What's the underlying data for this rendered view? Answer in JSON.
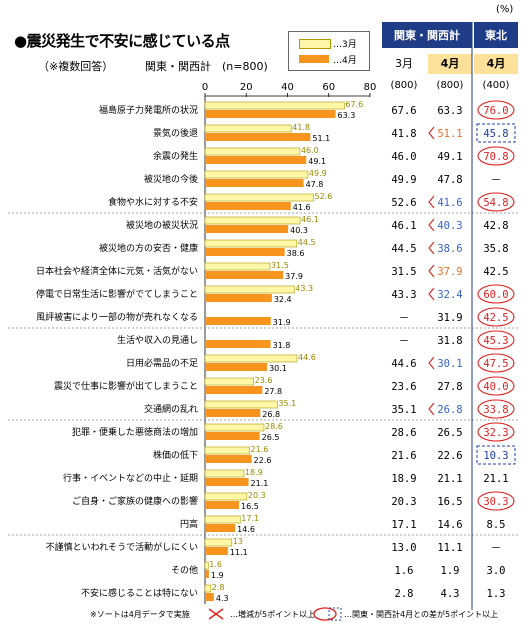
{
  "title": "●震災発生で不安に感じている点",
  "note": "（※複数回答）",
  "subtitle": "関東・関西計　(n=800)",
  "unit": "(%)",
  "legend": [
    {
      "label": "…3月",
      "color": "#fff7a8"
    },
    {
      "label": "…4月",
      "color": "#f7941d"
    }
  ],
  "headers": {
    "kanto_kansai": "関東・関西計",
    "tohoku": "東北",
    "march": "3月",
    "april": "4月",
    "april_tohoku": "4月",
    "n_march": "(800)",
    "n_april": "(800)",
    "n_tohoku": "(400)"
  },
  "chart_data": {
    "type": "bar",
    "orientation": "horizontal",
    "xlim": [
      0,
      80
    ],
    "xticks": [
      "0",
      "20",
      "40",
      "60",
      "80"
    ],
    "categories": [
      "福島原子力発電所の状況",
      "景気の後退",
      "余震の発生",
      "被災地の今後",
      "食物や水に対する不安",
      "被災地の被災状況",
      "被災地の方の安否・健康",
      "日本社会や経済全体に元気・活気がない",
      "停電で日常生活に影響がでてしまうこと",
      "風評被害により一部の物が売れなくなる",
      "生活や収入の見通し",
      "日用必需品の不足",
      "震災で仕事に影響が出てしまうこと",
      "交通網の乱れ",
      "犯罪・便乗した悪徳商法の増加",
      "株価の低下",
      "行事・イベントなどの中止・延期",
      "ご自身・ご家族の健康への影響",
      "円高",
      "不謹慎といわれそうで活動がしにくい",
      "その他",
      "不安に感じることは特にない"
    ],
    "series": [
      {
        "name": "3月",
        "color": "#fff7a8",
        "values": [
          67.6,
          41.8,
          46.0,
          49.9,
          52.6,
          46.1,
          44.5,
          31.5,
          43.3,
          null,
          null,
          44.6,
          23.6,
          35.1,
          28.6,
          21.6,
          18.9,
          20.3,
          17.1,
          13.0,
          1.6,
          2.8
        ]
      },
      {
        "name": "4月",
        "color": "#f7941d",
        "values": [
          63.3,
          51.1,
          49.1,
          47.8,
          41.6,
          40.3,
          38.6,
          37.9,
          32.4,
          31.9,
          31.8,
          30.1,
          27.8,
          26.8,
          26.5,
          22.6,
          21.1,
          16.5,
          14.6,
          11.1,
          1.9,
          4.3
        ]
      }
    ],
    "bar_labels_march": [
      "67.6",
      "41.8",
      "46.0",
      "49.9",
      "52.6",
      "46.1",
      "44.5",
      "31.5",
      "43.3",
      "",
      "",
      "44.6",
      "23.6",
      "35.1",
      "28.6",
      "21.6",
      "18.9",
      "20.3",
      "17.1",
      "13",
      "1.6",
      "2.8"
    ],
    "bar_labels_april": [
      "63.3",
      "51.1",
      "49.1",
      "47.8",
      "41.6",
      "40.3",
      "38.6",
      "37.9",
      "32.4",
      "31.9",
      "31.8",
      "30.1",
      "27.8",
      "26.8",
      "26.5",
      "22.6",
      "21.1",
      "16.5",
      "14.6",
      "11.1",
      "1.9",
      "4.3"
    ],
    "table": {
      "march": [
        "67.6",
        "41.8",
        "46.0",
        "49.9",
        "52.6",
        "46.1",
        "44.5",
        "31.5",
        "43.3",
        "－",
        "－",
        "44.6",
        "23.6",
        "35.1",
        "28.6",
        "21.6",
        "18.9",
        "20.3",
        "17.1",
        "13.0",
        "1.6",
        "2.8"
      ],
      "april": [
        "63.3",
        "51.1",
        "49.1",
        "47.8",
        "41.6",
        "40.3",
        "38.6",
        "37.9",
        "32.4",
        "31.9",
        "31.8",
        "30.1",
        "27.8",
        "26.8",
        "26.5",
        "22.6",
        "21.1",
        "16.5",
        "14.6",
        "11.1",
        "1.9",
        "4.3"
      ],
      "tohoku": [
        "76.0",
        "45.8",
        "70.8",
        "－",
        "54.8",
        "42.8",
        "35.8",
        "42.5",
        "60.0",
        "42.5",
        "45.3",
        "47.5",
        "40.0",
        "33.8",
        "32.3",
        "10.3",
        "21.1",
        "30.3",
        "8.5",
        "－",
        "3.0",
        "1.3"
      ],
      "april_change": [
        "none",
        "up",
        "none",
        "none",
        "down",
        "down",
        "down",
        "up",
        "down",
        "none",
        "none",
        "down",
        "none",
        "down",
        "none",
        "none",
        "none",
        "none",
        "none",
        "none",
        "none",
        "none"
      ],
      "tohoku_mark": [
        "circle",
        "dashbox",
        "circle",
        "none",
        "circle",
        "none",
        "none",
        "none",
        "circle",
        "circle",
        "circle",
        "circle",
        "circle",
        "circle",
        "circle",
        "dashbox",
        "none",
        "circle",
        "none",
        "none",
        "none",
        "none"
      ]
    },
    "group_separators_after": [
      4,
      9,
      13,
      18
    ],
    "colors": {
      "up": "#e8702a",
      "down": "#3a63c8",
      "circle": "#e02020",
      "dashbox": "#1f3ca8",
      "header": "#1f3c86",
      "highlight": "#fde09a"
    }
  },
  "footer": {
    "note": "※ソートは4月データで実施",
    "cross_label": "…増減が5ポイント以上",
    "circle_label": "…関東・関西計4月との差が5ポイント以上"
  }
}
